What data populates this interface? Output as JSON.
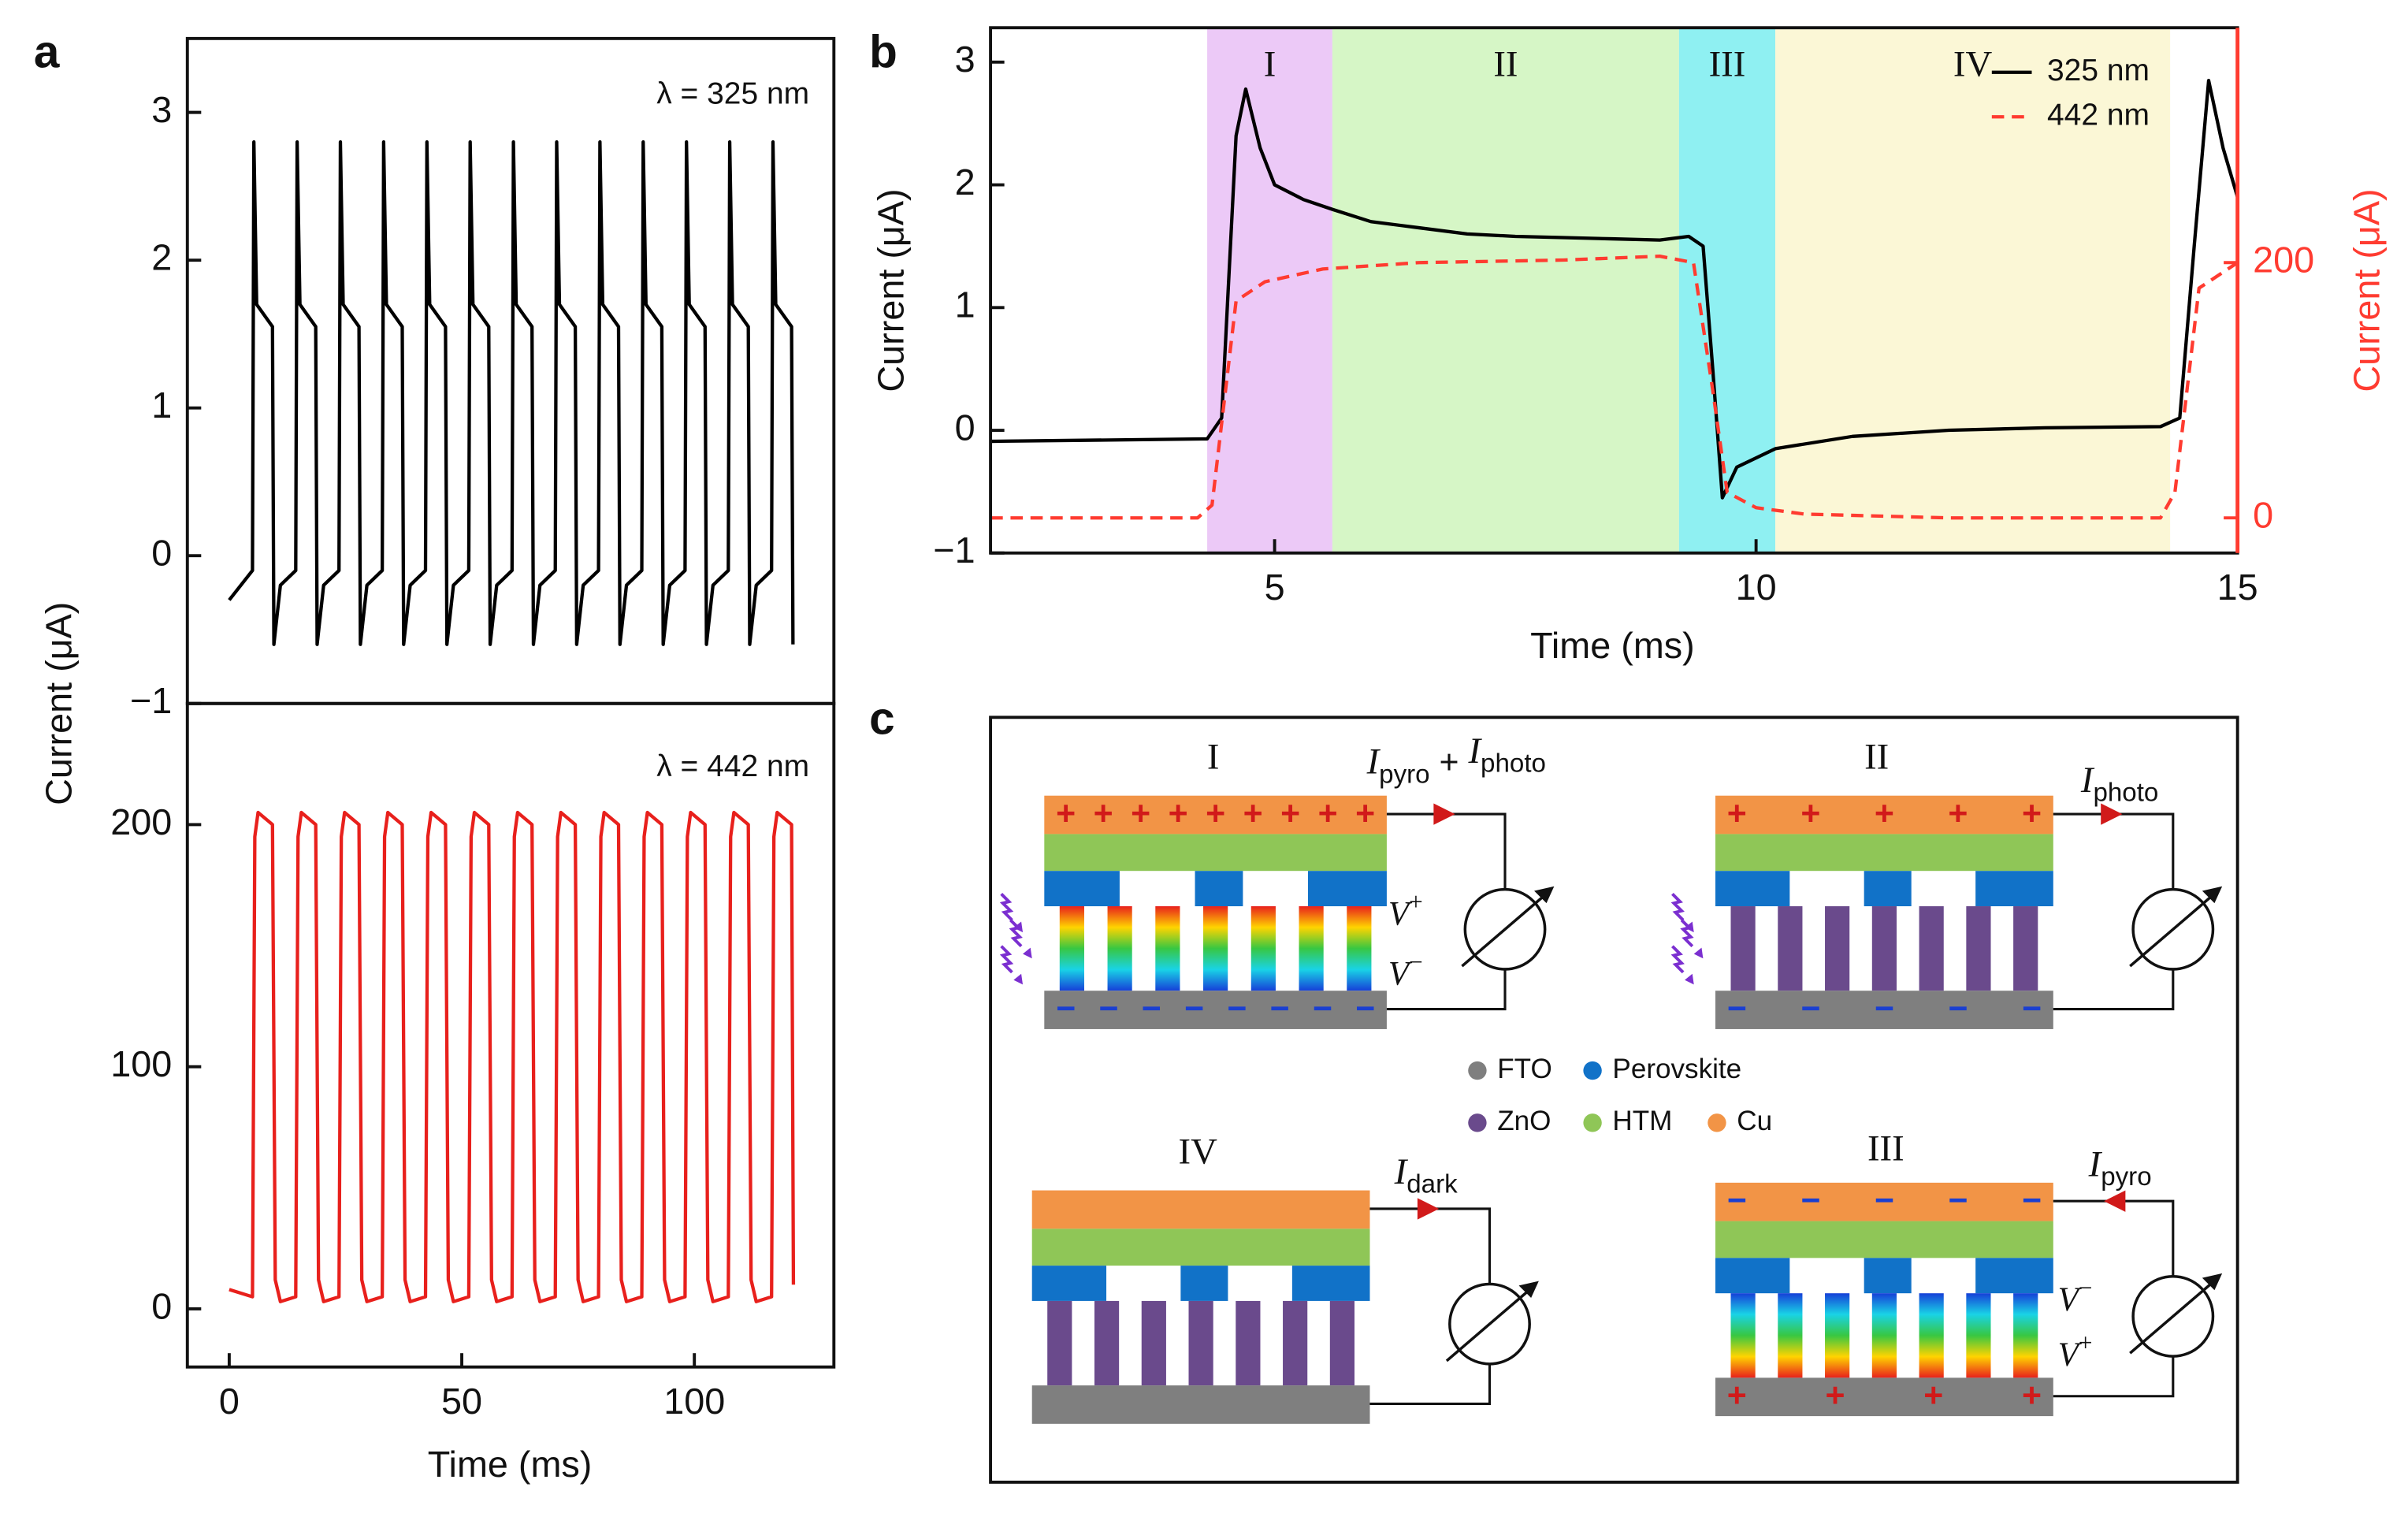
{
  "panel_labels": [
    "a",
    "b",
    "c"
  ],
  "chart_data": [
    {
      "type": "line",
      "ylabel": "Current (μA)",
      "annotation": "λ = 325 nm",
      "x": [
        0,
        5,
        5.3,
        5.9,
        9.3,
        9.6,
        11,
        14.3,
        14.6,
        15.2,
        18.6,
        18.9,
        20.3,
        23.6,
        23.9,
        24.5,
        27.9,
        28.2,
        29.6,
        32.9,
        33.2,
        33.8,
        37.2,
        37.5,
        38.9,
        42.2,
        42.5,
        43.1,
        46.5,
        46.8,
        48.2,
        51.5,
        51.8,
        52.4,
        55.8,
        56.1,
        57.5,
        60.8,
        61.1,
        61.7,
        65.1,
        65.4,
        66.8,
        70.1,
        70.4,
        71,
        74.4,
        74.7,
        76.1,
        79.4,
        79.7,
        80.3,
        83.7,
        84,
        85.4,
        88.7,
        89,
        89.6,
        93,
        93.3,
        94.7,
        98,
        98.3,
        98.9,
        102.3,
        102.6,
        104,
        107.3,
        107.6,
        108.2,
        111.6,
        111.9,
        113.3,
        116.6,
        116.9,
        117.5,
        120.9,
        121.2
      ],
      "series": [
        {
          "color": "#000000",
          "values": [
            -0.3,
            -0.1,
            2.8,
            1.7,
            1.55,
            -0.6,
            -0.2,
            -0.1,
            2.8,
            1.7,
            1.55,
            -0.6,
            -0.2,
            -0.1,
            2.8,
            1.7,
            1.55,
            -0.6,
            -0.2,
            -0.1,
            2.8,
            1.7,
            1.55,
            -0.6,
            -0.2,
            -0.1,
            2.8,
            1.7,
            1.55,
            -0.6,
            -0.2,
            -0.1,
            2.8,
            1.7,
            1.55,
            -0.6,
            -0.2,
            -0.1,
            2.8,
            1.7,
            1.55,
            -0.6,
            -0.2,
            -0.1,
            2.8,
            1.7,
            1.55,
            -0.6,
            -0.2,
            -0.1,
            2.8,
            1.7,
            1.55,
            -0.6,
            -0.2,
            -0.1,
            2.8,
            1.7,
            1.55,
            -0.6,
            -0.2,
            -0.1,
            2.8,
            1.7,
            1.55,
            -0.6,
            -0.2,
            -0.1,
            2.8,
            1.7,
            1.55,
            -0.6,
            -0.2,
            -0.1,
            2.8,
            1.7,
            1.55,
            -0.6
          ]
        }
      ],
      "xlim": [
        -9,
        130
      ],
      "ylim": [
        -1,
        3.5
      ],
      "yticks": [
        {
          "value": -1,
          "label": "−1"
        },
        0,
        1,
        2,
        3
      ]
    },
    {
      "type": "line",
      "xlabel": "Time (ms)",
      "annotation": "λ = 442 nm",
      "x": [
        0,
        5,
        5.5,
        6.2,
        9.3,
        9.9,
        11,
        14.3,
        14.8,
        15.5,
        18.6,
        19.2,
        20.3,
        23.6,
        24.1,
        24.8,
        27.9,
        28.5,
        29.6,
        32.9,
        33.4,
        34.1,
        37.2,
        37.8,
        38.9,
        42.2,
        42.7,
        43.4,
        46.5,
        47.1,
        48.2,
        51.5,
        52,
        52.7,
        55.8,
        56.4,
        57.5,
        60.8,
        61.3,
        62,
        65.1,
        65.7,
        66.8,
        70.1,
        70.6,
        71.3,
        74.4,
        75,
        76.1,
        79.4,
        79.9,
        80.6,
        83.7,
        84.3,
        85.4,
        88.7,
        89.2,
        89.9,
        93,
        93.6,
        94.7,
        98,
        98.5,
        99.2,
        102.3,
        102.9,
        104,
        107.3,
        107.8,
        108.5,
        111.6,
        112.2,
        113.3,
        116.6,
        117.1,
        117.8,
        120.9,
        121.3
      ],
      "series": [
        {
          "color": "#e8201c",
          "values": [
            8,
            5,
            195,
            205,
            200,
            12,
            3,
            5,
            195,
            205,
            200,
            12,
            3,
            5,
            195,
            205,
            200,
            12,
            3,
            5,
            195,
            205,
            200,
            12,
            3,
            5,
            195,
            205,
            200,
            12,
            3,
            5,
            195,
            205,
            200,
            12,
            3,
            5,
            195,
            205,
            200,
            12,
            3,
            5,
            195,
            205,
            200,
            12,
            3,
            5,
            195,
            205,
            200,
            12,
            3,
            5,
            195,
            205,
            200,
            12,
            3,
            5,
            195,
            205,
            200,
            12,
            3,
            5,
            195,
            205,
            200,
            12,
            3,
            5,
            195,
            205,
            200,
            10
          ]
        }
      ],
      "xlim": [
        -9,
        130
      ],
      "xticks": [
        0,
        50,
        100
      ],
      "ylim": [
        -24,
        250
      ],
      "yticks": [
        0,
        100,
        200
      ]
    },
    {
      "type": "line",
      "xlabel": "Time (ms)",
      "ylabel": "Current (μA)",
      "y2label": "Current (μA)",
      "legend": "top-right",
      "regions": [
        {
          "label": "I",
          "range": [
            4.3,
            5.6
          ],
          "color": "#ecc9f7"
        },
        {
          "label": "II",
          "range": [
            5.6,
            9.2
          ],
          "color": "#d6f6c6"
        },
        {
          "label": "III",
          "range": [
            9.2,
            10.2
          ],
          "color": "#8ff0f2"
        },
        {
          "label": "IV",
          "range": [
            10.2,
            14.3
          ],
          "color": "#fbf7d6"
        }
      ],
      "series": [
        {
          "name": "325 nm",
          "color": "#000000",
          "x": [
            2.05,
            4.3,
            4.45,
            4.6,
            4.7,
            4.85,
            5,
            5.3,
            5.6,
            6,
            6.5,
            7,
            7.5,
            8,
            8.5,
            9,
            9.3,
            9.45,
            9.55,
            9.65,
            9.8,
            10.2,
            11,
            12,
            13,
            14.2,
            14.4,
            14.55,
            14.7,
            14.85,
            15
          ],
          "values": [
            -0.09,
            -0.07,
            0.1,
            2.4,
            2.78,
            2.3,
            2,
            1.88,
            1.8,
            1.7,
            1.65,
            1.6,
            1.58,
            1.57,
            1.56,
            1.55,
            1.58,
            1.5,
            0.5,
            -0.55,
            -0.3,
            -0.15,
            -0.05,
            0,
            0.02,
            0.03,
            0.1,
            1.5,
            2.85,
            2.3,
            1.9
          ]
        },
        {
          "name": "442 nm",
          "color": "#ff3b30",
          "dash": true,
          "axis": "y2",
          "x": [
            2.05,
            4.2,
            4.35,
            4.6,
            4.9,
            5.5,
            6.5,
            8,
            9,
            9.35,
            9.55,
            9.7,
            10,
            10.5,
            12,
            14.2,
            14.35,
            14.6,
            15
          ],
          "values": [
            0,
            0,
            10,
            170,
            185,
            195,
            200,
            202,
            205,
            200,
            100,
            20,
            8,
            3,
            0,
            0,
            20,
            180,
            200
          ]
        }
      ],
      "xlim": [
        2.05,
        15
      ],
      "xticks": [
        5,
        10,
        15
      ],
      "ylim": [
        -1,
        3.28
      ],
      "yticks": [
        {
          "value": -1,
          "label": "−1"
        },
        0,
        1,
        2,
        3
      ],
      "y2lim": [
        -27.5,
        384
      ],
      "y2ticks": [
        0,
        200
      ]
    }
  ],
  "diagram": {
    "states": [
      {
        "label": "I",
        "current": [
          {
            "t": "I"
          },
          {
            "t": "pyro",
            "sub": true
          },
          {
            "t": " + "
          },
          {
            "t": "I"
          },
          {
            "t": "photo",
            "sub": true
          }
        ]
      },
      {
        "label": "II",
        "current": [
          {
            "t": "I"
          },
          {
            "t": "photo",
            "sub": true
          }
        ]
      },
      {
        "label": "IV",
        "current": [
          {
            "t": "I"
          },
          {
            "t": "dark",
            "sub": true
          }
        ]
      },
      {
        "label": "III",
        "current": [
          {
            "t": "I"
          },
          {
            "t": "pyro",
            "sub": true
          }
        ]
      }
    ],
    "legend": [
      {
        "name": "FTO",
        "color": "#7f7f7f"
      },
      {
        "name": "Perovskite",
        "color": "#1172c8"
      },
      {
        "name": "ZnO",
        "color": "#6a4a8c"
      },
      {
        "name": "HTM",
        "color": "#8fc657"
      },
      {
        "name": "Cu",
        "color": "#f29446"
      }
    ],
    "charge": {
      "plus": "+",
      "minus": "−"
    },
    "voltage": {
      "base": "V",
      "plus": "+",
      "minus": "−"
    }
  }
}
